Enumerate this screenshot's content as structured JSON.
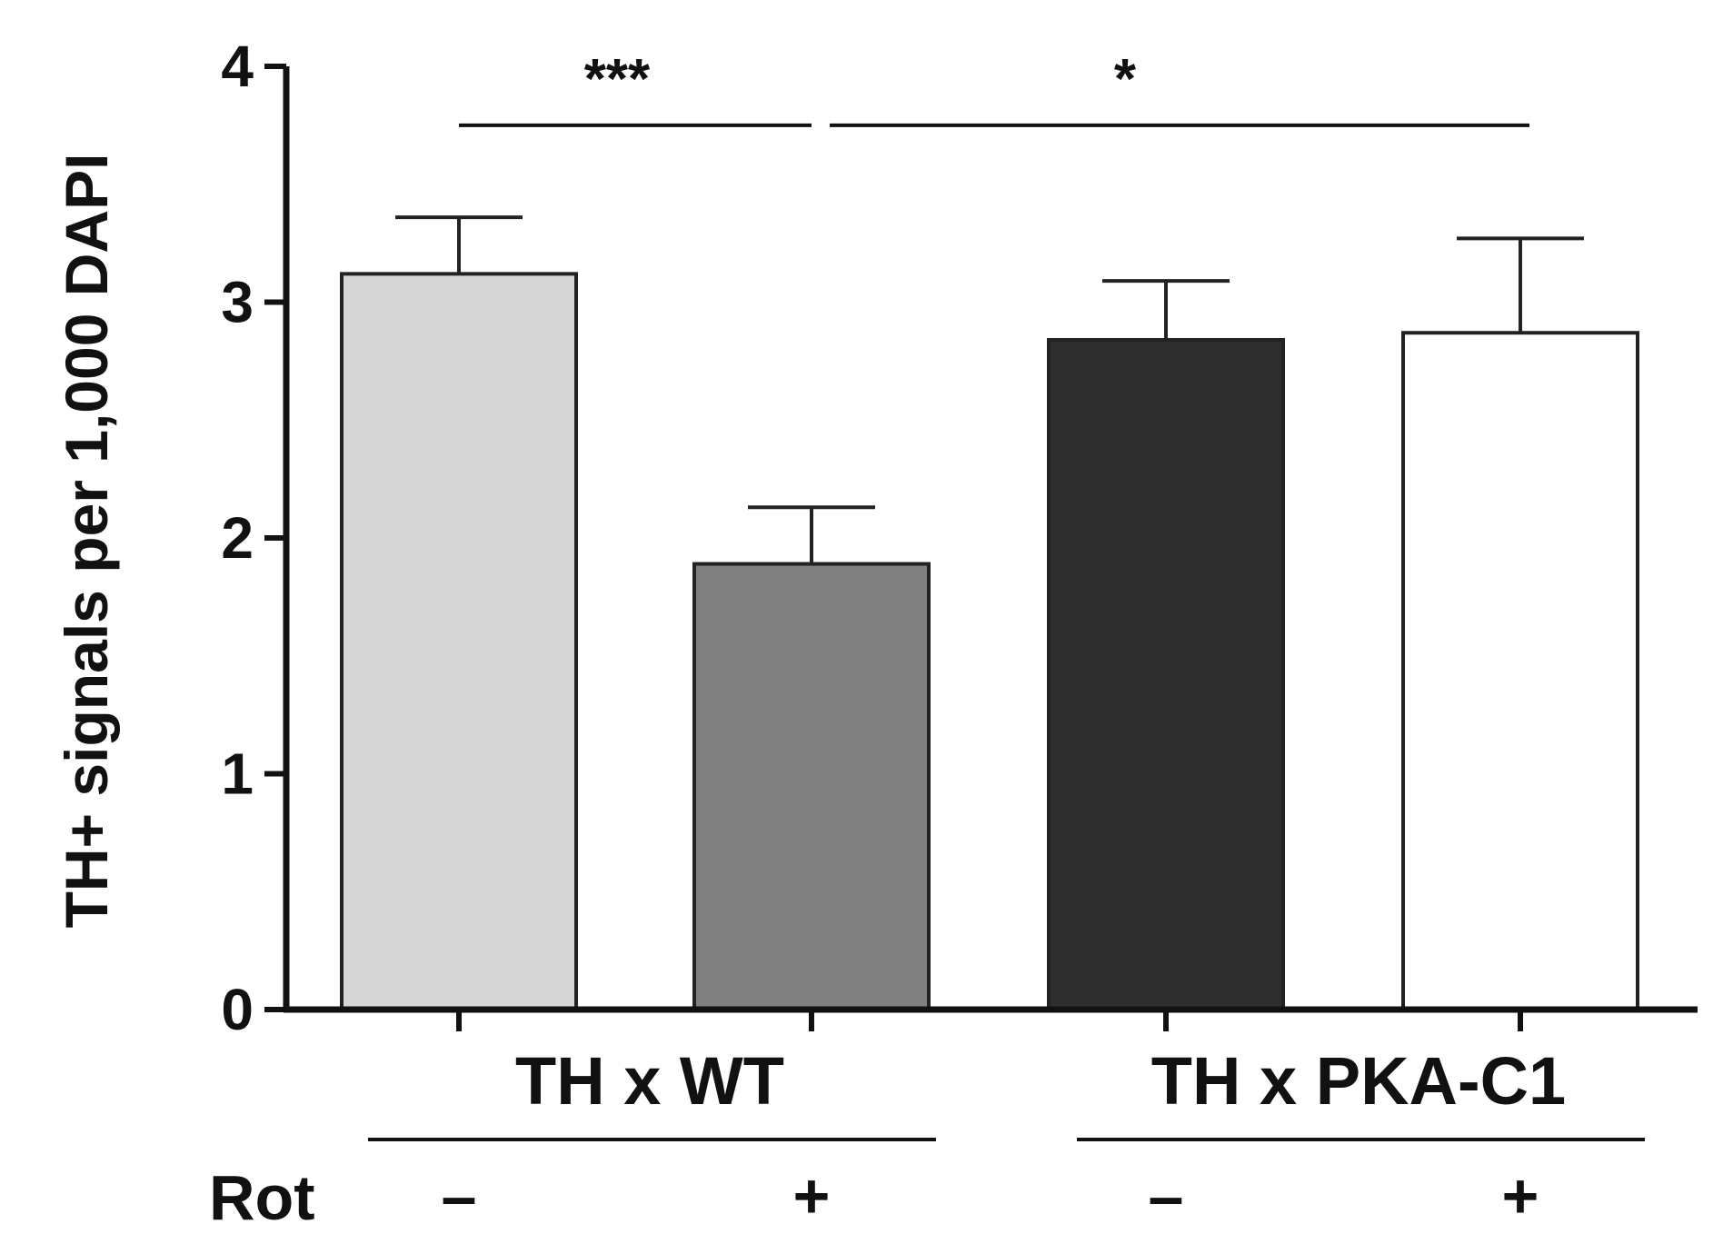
{
  "chart_data": {
    "type": "bar",
    "ylabel": "TH+ signals per 1,000 DAPI",
    "ylim": [
      0,
      4
    ],
    "yticks": [
      "0",
      "1",
      "2",
      "3",
      "4"
    ],
    "groups": [
      {
        "label": "TH x WT",
        "bars": [
          0,
          1
        ]
      },
      {
        "label": "TH x PKA-C1",
        "bars": [
          2,
          3
        ]
      }
    ],
    "treatment_label": "Rot",
    "bars": [
      {
        "group": "TH x WT",
        "rot": "–",
        "value": 3.12,
        "error": 0.24,
        "color": "#d6d6d6"
      },
      {
        "group": "TH x WT",
        "rot": "+",
        "value": 1.89,
        "error": 0.24,
        "color": "#808080"
      },
      {
        "group": "TH x PKA-C1",
        "rot": "–",
        "value": 2.84,
        "error": 0.25,
        "color": "#2e2e2e"
      },
      {
        "group": "TH x PKA-C1",
        "rot": "+",
        "value": 2.87,
        "error": 0.4,
        "color": "#ffffff"
      }
    ],
    "significance": [
      {
        "from_bar": 0,
        "to_bar": 1,
        "label": "***",
        "y": 3.75
      },
      {
        "from_bar": 1,
        "to_bar": 3,
        "label": "*",
        "y": 3.75
      }
    ]
  }
}
